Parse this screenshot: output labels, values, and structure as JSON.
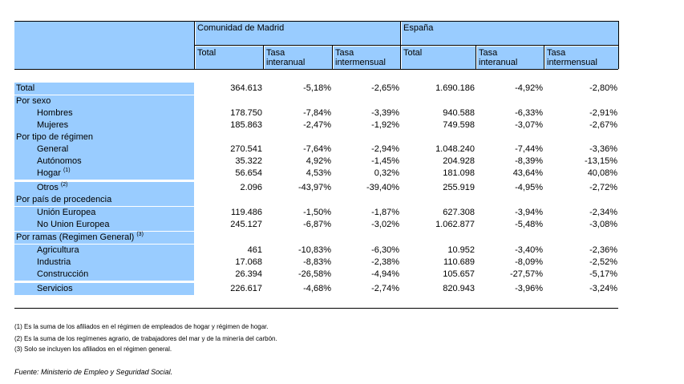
{
  "header": {
    "group_madrid": "Comunidad de Madrid",
    "group_espana": "España",
    "col_total": "Total",
    "col_tasa_interanual_1": "Tasa",
    "col_tasa_interanual_2": "interanual",
    "col_tasa_intermensual_1": "Tasa",
    "col_tasa_intermensual_2": "intermensual"
  },
  "rows": [
    {
      "label": "Total",
      "indent": false,
      "sup": "",
      "values": [
        "364.613",
        "-5,18%",
        "-2,65%",
        "1.690.186",
        "-4,92%",
        "-2,80%"
      ]
    },
    {
      "label": "Por sexo",
      "indent": false,
      "sup": "",
      "values": [
        "",
        "",
        "",
        "",
        "",
        ""
      ]
    },
    {
      "label": "Hombres",
      "indent": true,
      "sup": "",
      "values": [
        "178.750",
        "-7,84%",
        "-3,39%",
        "940.588",
        "-6,33%",
        "-2,91%"
      ]
    },
    {
      "label": "Mujeres",
      "indent": true,
      "sup": "",
      "values": [
        "185.863",
        "-2,47%",
        "-1,92%",
        "749.598",
        "-3,07%",
        "-2,67%"
      ]
    },
    {
      "label": "Por tipo de régimen",
      "indent": false,
      "sup": "",
      "values": [
        "",
        "",
        "",
        "",
        "",
        ""
      ]
    },
    {
      "label": "General",
      "indent": true,
      "sup": "",
      "values": [
        "270.541",
        "-7,64%",
        "-2,94%",
        "1.048.240",
        "-7,44%",
        "-3,36%"
      ]
    },
    {
      "label": "Autónomos",
      "indent": true,
      "sup": "",
      "values": [
        "35.322",
        "4,92%",
        "-1,45%",
        "204.928",
        "-8,39%",
        "-13,15%"
      ]
    },
    {
      "label": "Hogar",
      "indent": true,
      "sup": "(1)",
      "values": [
        "56.654",
        "4,53%",
        "0,32%",
        "181.098",
        "43,64%",
        "40,08%"
      ]
    },
    {
      "label": "Otros",
      "indent": true,
      "sup": "(2)",
      "values": [
        "2.096",
        "-43,97%",
        "-39,40%",
        "255.919",
        "-4,95%",
        "-2,72%"
      ]
    },
    {
      "label": "Por país de procedencia",
      "indent": false,
      "sup": "",
      "values": [
        "",
        "",
        "",
        "",
        "",
        ""
      ]
    },
    {
      "label": "Unión Europea",
      "indent": true,
      "sup": "",
      "values": [
        "119.486",
        "-1,50%",
        "-1,87%",
        "627.308",
        "-3,94%",
        "-2,34%"
      ]
    },
    {
      "label": "No Union Europea",
      "indent": true,
      "sup": "",
      "values": [
        "245.127",
        "-6,87%",
        "-3,02%",
        "1.062.877",
        "-5,48%",
        "-3,08%"
      ]
    },
    {
      "label": "Por ramas (Regimen General)",
      "indent": false,
      "sup": "(3)",
      "values": [
        "",
        "",
        "",
        "",
        "",
        ""
      ]
    },
    {
      "label": "Agricultura",
      "indent": true,
      "sup": "",
      "values": [
        "461",
        "-10,83%",
        "-6,30%",
        "10.952",
        "-3,40%",
        "-2,36%"
      ]
    },
    {
      "label": "Industria",
      "indent": true,
      "sup": "",
      "values": [
        "17.068",
        "-8,83%",
        "-2,38%",
        "110.689",
        "-8,09%",
        "-2,52%"
      ]
    },
    {
      "label": "Construcción",
      "indent": true,
      "sup": "",
      "values": [
        "26.394",
        "-26,58%",
        "-4,94%",
        "105.657",
        "-27,57%",
        "-5,17%"
      ]
    },
    {
      "label": "Servicios",
      "indent": true,
      "sup": "",
      "values": [
        "226.617",
        "-4,68%",
        "-2,74%",
        "820.943",
        "-3,96%",
        "-3,24%"
      ]
    }
  ],
  "notes": [
    "(1) Es la suma de los afiliados en el régimen de empleados de hogar y régimen de hogar.",
    "(2) Es la suma de los regímenes  agrario, de trabajadores del mar y de la minería del carbón.",
    "(3) Solo se incluyen los afiliados en el régimen general."
  ],
  "source": "Fuente: Ministerio de Empleo y Seguridad Social.",
  "colors": {
    "header_fill": "#99ccff",
    "line": "#000000"
  }
}
